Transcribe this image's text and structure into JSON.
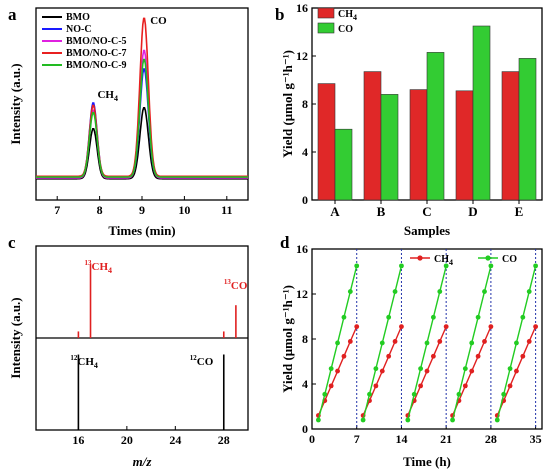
{
  "chart_data": [
    {
      "panel": "a",
      "type": "line",
      "xlabel": "Times (min)",
      "ylabel": "Intensity (a.u.)",
      "xlim": [
        6.5,
        11.5
      ],
      "x_ticks": [
        7,
        8,
        9,
        10,
        11
      ],
      "legend": "top-left",
      "annotations": [
        {
          "text": "CH",
          "sub": "4",
          "x": 7.95
        },
        {
          "text": "CO",
          "x": 9.1
        }
      ],
      "series": [
        {
          "name": "BMO",
          "color": "#000000",
          "baseline": 0.02,
          "peaks": [
            {
              "x": 7.85,
              "h": 0.31,
              "w": 0.09
            },
            {
              "x": 9.05,
              "h": 0.44,
              "w": 0.1
            }
          ]
        },
        {
          "name": "NO-C",
          "color": "#1a1aff",
          "baseline": 0.03,
          "peaks": [
            {
              "x": 7.85,
              "h": 0.46,
              "w": 0.09
            },
            {
              "x": 9.05,
              "h": 0.67,
              "w": 0.1
            }
          ]
        },
        {
          "name": "BMO/NO-C-5",
          "color": "#e020e0",
          "baseline": 0.025,
          "peaks": [
            {
              "x": 7.85,
              "h": 0.42,
              "w": 0.09
            },
            {
              "x": 9.05,
              "h": 0.79,
              "w": 0.1
            }
          ]
        },
        {
          "name": "BMO/NO-C-7",
          "color": "#e82020",
          "baseline": 0.035,
          "peaks": [
            {
              "x": 7.85,
              "h": 0.44,
              "w": 0.09
            },
            {
              "x": 9.05,
              "h": 0.98,
              "w": 0.1
            }
          ]
        },
        {
          "name": "BMO/NO-C-9",
          "color": "#22bb22",
          "baseline": 0.03,
          "peaks": [
            {
              "x": 7.85,
              "h": 0.4,
              "w": 0.09
            },
            {
              "x": 9.05,
              "h": 0.73,
              "w": 0.1
            }
          ]
        }
      ]
    },
    {
      "panel": "b",
      "type": "bar",
      "xlabel": "Samples",
      "ylabel": "Yield (μmol g⁻¹h⁻¹)",
      "ylim": [
        0,
        16
      ],
      "y_ticks": [
        0,
        4,
        8,
        12,
        16
      ],
      "legend": "top-left",
      "categories": [
        "A",
        "B",
        "C",
        "D",
        "E"
      ],
      "series": [
        {
          "name": "CH4",
          "color": "#e02828",
          "values": [
            9.7,
            10.7,
            9.2,
            9.1,
            10.7
          ]
        },
        {
          "name": "CO",
          "color": "#33cc33",
          "values": [
            5.9,
            8.8,
            12.3,
            14.5,
            11.8
          ]
        }
      ]
    },
    {
      "panel": "c",
      "type": "bar",
      "xlabel": "m/z",
      "ylabel": "Intensity (a.u.)",
      "xlim": [
        12.5,
        30
      ],
      "x_ticks": [
        16,
        20,
        24,
        28
      ],
      "top_annotations": [
        {
          "text": "13CH4",
          "x": 17
        },
        {
          "text": "13CO",
          "x": 29
        }
      ],
      "bottom_annotations": [
        {
          "text": "12CH4",
          "x": 16
        },
        {
          "text": "12CO",
          "x": 28
        }
      ],
      "top_lines": [
        {
          "x": 16,
          "h": 0.08
        },
        {
          "x": 17,
          "h": 0.9
        },
        {
          "x": 28,
          "h": 0.08
        },
        {
          "x": 29,
          "h": 0.4
        }
      ],
      "bottom_lines": [
        {
          "x": 16,
          "h": 0.92
        },
        {
          "x": 28,
          "h": 0.92
        }
      ],
      "top_color": "#e02020",
      "bottom_color": "#000000"
    },
    {
      "panel": "d",
      "type": "line",
      "xlabel": "Time (h)",
      "ylabel": "Yield (μmol g⁻¹h⁻¹)",
      "xlim": [
        0,
        36
      ],
      "ylim": [
        0,
        16
      ],
      "x_ticks": [
        0,
        7,
        14,
        21,
        28,
        35
      ],
      "y_ticks": [
        0,
        4,
        8,
        12,
        16
      ],
      "legend": "top-right",
      "cycle_boundaries": [
        7,
        14,
        21,
        28,
        35
      ],
      "cycle_starts": [
        1,
        8,
        15,
        22,
        29
      ],
      "points_per_cycle": 7,
      "series": [
        {
          "name": "CH4",
          "color": "#e02020",
          "start": 1.2,
          "end": 9.1
        },
        {
          "name": "CO",
          "color": "#22cc22",
          "start": 0.8,
          "end": 14.5
        }
      ]
    }
  ],
  "panel_labels": [
    "a",
    "b",
    "c",
    "d"
  ]
}
